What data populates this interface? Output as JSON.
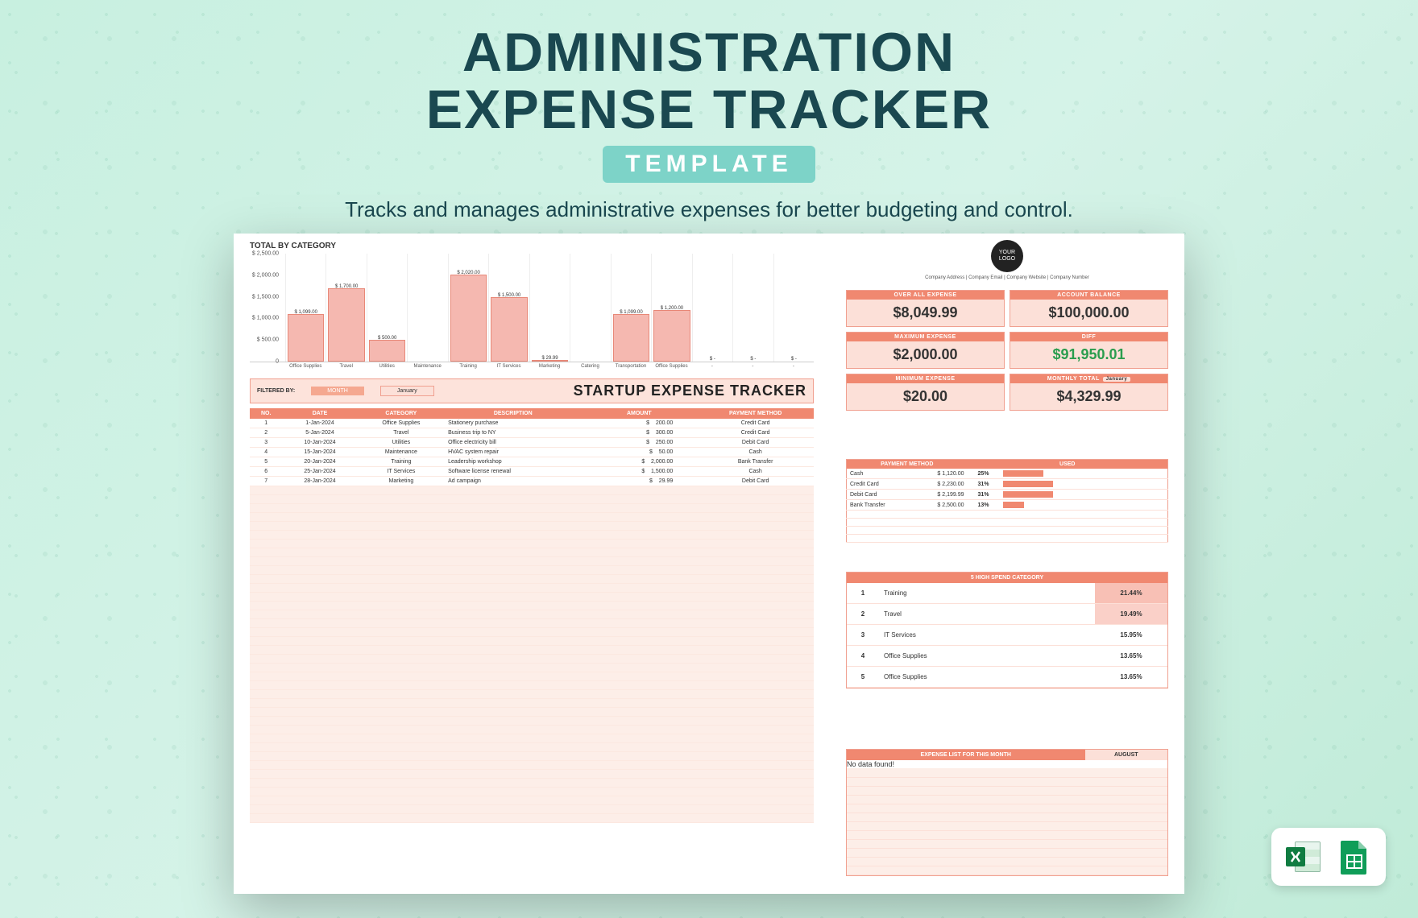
{
  "hero": {
    "title_line1": "ADMINISTRATION",
    "title_line2": "EXPENSE TRACKER",
    "pill": "TEMPLATE",
    "subtitle": "Tracks and manages administrative expenses for better budgeting and control."
  },
  "chart": {
    "title": "TOTAL BY CATEGORY",
    "type": "bar",
    "ylim": [
      0,
      2500
    ],
    "ytick_step": 500,
    "ylabels": [
      "$ 2,500.00",
      "$ 2,000.00",
      "$ 1,500.00",
      "$ 1,000.00",
      "$ 500.00",
      "0"
    ],
    "bar_color": "#f5b8b0",
    "bar_border": "#e88878",
    "grid_color": "#eeeeee",
    "categories": [
      "Office Supplies",
      "Travel",
      "Utilities",
      "Maintenance",
      "Training",
      "IT Services",
      "Marketing",
      "Catering",
      "Transportation",
      "Office Supplies",
      "-",
      "-",
      "-"
    ],
    "values": [
      1099.0,
      1700.0,
      500.0,
      0,
      2020.0,
      1500.0,
      29.99,
      0,
      1099.0,
      1200.0,
      0,
      0,
      0
    ],
    "value_labels": [
      "$ 1,099.00",
      "$ 1,700.00",
      "$ 500.00",
      "",
      "$ 2,020.00",
      "$ 1,500.00",
      "$ 29.99",
      "",
      "$ 1,099.00",
      "$ 1,200.00",
      "$ -",
      "$ -",
      "$ -"
    ]
  },
  "company": {
    "logo_text": "YOUR LOGO",
    "meta": "Company Address  |  Company Email  |  Company Website  |  Company Number"
  },
  "kpis": [
    {
      "label": "OVER ALL EXPENSE",
      "value": "$8,049.99",
      "green": false
    },
    {
      "label": "ACCOUNT BALANCE",
      "value": "$100,000.00",
      "green": false
    },
    {
      "label": "MAXIMUM EXPENSE",
      "value": "$2,000.00",
      "green": false
    },
    {
      "label": "DIFF",
      "value": "$91,950.01",
      "green": true
    },
    {
      "label": "MINIMUM EXPENSE",
      "value": "$20.00",
      "green": false
    },
    {
      "label": "MONTHLY TOTAL",
      "value": "$4,329.99",
      "green": false,
      "tag": "January"
    }
  ],
  "filter": {
    "label": "FILTERED BY:",
    "month_label": "MONTH",
    "month_value": "January",
    "main_title": "STARTUP EXPENSE TRACKER"
  },
  "table": {
    "headers": [
      "NO.",
      "DATE",
      "CATEGORY",
      "DESCRIPTION",
      "AMOUNT",
      "PAYMENT METHOD"
    ],
    "rows": [
      [
        "1",
        "1-Jan-2024",
        "Office Supplies",
        "Stationery purchase",
        "$",
        "200.00",
        "Credit Card"
      ],
      [
        "2",
        "5-Jan-2024",
        "Travel",
        "Business trip to NY",
        "$",
        "300.00",
        "Credit Card"
      ],
      [
        "3",
        "10-Jan-2024",
        "Utilities",
        "Office electricity bill",
        "$",
        "250.00",
        "Debit Card"
      ],
      [
        "4",
        "15-Jan-2024",
        "Maintenance",
        "HVAC system repair",
        "$",
        "50.00",
        "Cash"
      ],
      [
        "5",
        "20-Jan-2024",
        "Training",
        "Leadership workshop",
        "$",
        "2,000.00",
        "Bank Transfer"
      ],
      [
        "6",
        "25-Jan-2024",
        "IT Services",
        "Software license renewal",
        "$",
        "1,500.00",
        "Cash"
      ],
      [
        "7",
        "28-Jan-2024",
        "Marketing",
        "Ad campaign",
        "$",
        "29.99",
        "Debit Card"
      ]
    ],
    "empty_row_count": 38
  },
  "payment_methods": {
    "headers": [
      "PAYMENT METHOD",
      "",
      "USED",
      ""
    ],
    "rows": [
      {
        "name": "Cash",
        "amount": "$  1,120.00",
        "pct": "25%",
        "bar": 25
      },
      {
        "name": "Credit Card",
        "amount": "$  2,230.00",
        "pct": "31%",
        "bar": 31
      },
      {
        "name": "Debit Card",
        "amount": "$  2,199.99",
        "pct": "31%",
        "bar": 31
      },
      {
        "name": "Bank Transfer",
        "amount": "$  2,500.00",
        "pct": "13%",
        "bar": 13
      }
    ],
    "empty_row_count": 4,
    "bar_color": "#f08870"
  },
  "high_spend": {
    "title": "5 HIGH SPEND CATEGORY",
    "rows": [
      {
        "rank": "1",
        "name": "Training",
        "pct": "21.44%",
        "shade": 1
      },
      {
        "rank": "2",
        "name": "Travel",
        "pct": "19.49%",
        "shade": 2
      },
      {
        "rank": "3",
        "name": "IT Services",
        "pct": "15.95%",
        "shade": 0
      },
      {
        "rank": "4",
        "name": "Office Supplies",
        "pct": "13.65%",
        "shade": 0
      },
      {
        "rank": "5",
        "name": "Office Supplies",
        "pct": "13.65%",
        "shade": 0
      }
    ]
  },
  "expense_list": {
    "title": "EXPENSE LIST FOR THIS MONTH",
    "month": "AUGUST",
    "no_data": "No data found!",
    "empty_row_count": 12
  },
  "icons": {
    "excel": "excel-icon",
    "sheets": "sheets-icon"
  },
  "colors": {
    "primary": "#f08870",
    "light": "#fce0d8",
    "lighter": "#fdeee8",
    "teal_dark": "#1a4850",
    "teal_pill": "#7dd3c8",
    "green": "#2a9d4e"
  }
}
